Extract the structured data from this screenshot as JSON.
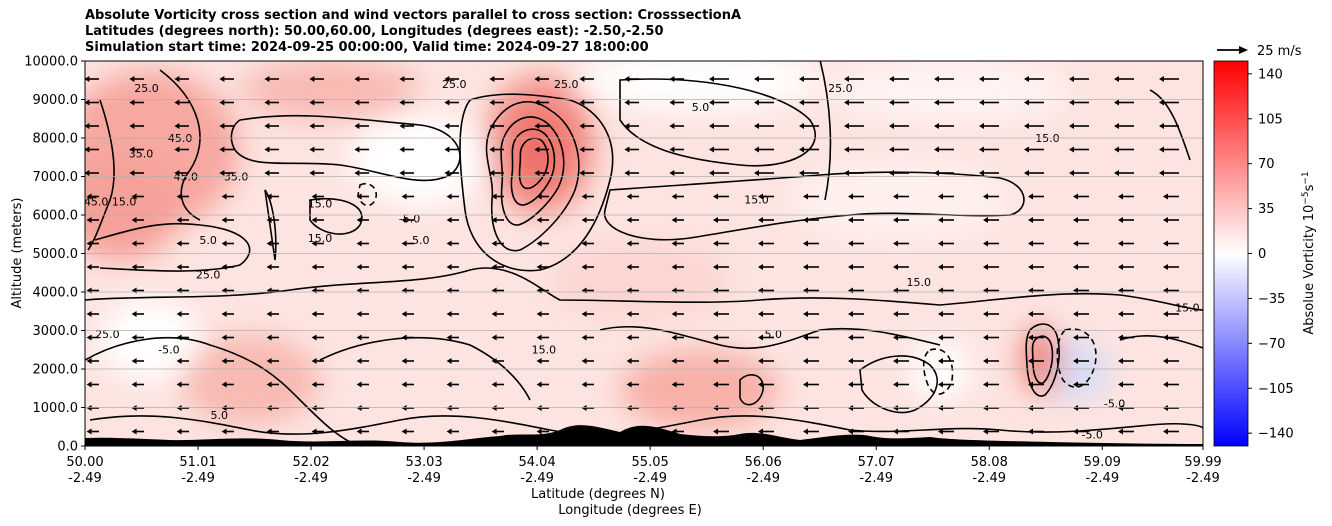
{
  "title_lines": [
    "Absolute Vorticity cross section and wind vectors parallel to cross section: CrosssectionA",
    "Latitudes (degrees north): 50.00,60.00, Longitudes (degrees east): -2.50,-2.50",
    "Simulation start time: 2024-09-25 00:00:00, Valid time: 2024-09-27 18:00:00"
  ],
  "chart_data": {
    "type": "heatmap",
    "ylabel": "Altitude (meters)",
    "xlabel_lines": [
      "Latitude (degrees N)",
      "Longitude (degrees E)"
    ],
    "ylim": [
      0,
      10000
    ],
    "xlim": [
      50.0,
      59.99
    ],
    "y_ticks": [
      "0.0",
      "1000.0",
      "2000.0",
      "3000.0",
      "4000.0",
      "5000.0",
      "6000.0",
      "7000.0",
      "8000.0",
      "9000.0",
      "10000.0"
    ],
    "y_tick_values": [
      0,
      1000,
      2000,
      3000,
      4000,
      5000,
      6000,
      7000,
      8000,
      9000,
      10000
    ],
    "x_ticks": [
      {
        "value": 50.0,
        "lat": "50.00",
        "lon": "-2.49"
      },
      {
        "value": 51.01,
        "lat": "51.01",
        "lon": "-2.49"
      },
      {
        "value": 52.02,
        "lat": "52.02",
        "lon": "-2.49"
      },
      {
        "value": 53.03,
        "lat": "53.03",
        "lon": "-2.49"
      },
      {
        "value": 54.04,
        "lat": "54.04",
        "lon": "-2.49"
      },
      {
        "value": 55.05,
        "lat": "55.05",
        "lon": "-2.49"
      },
      {
        "value": 56.06,
        "lat": "56.06",
        "lon": "-2.49"
      },
      {
        "value": 57.07,
        "lat": "57.07",
        "lon": "-2.49"
      },
      {
        "value": 58.08,
        "lat": "58.08",
        "lon": "-2.49"
      },
      {
        "value": 59.09,
        "lat": "59.09",
        "lon": "-2.49"
      },
      {
        "value": 59.99,
        "lat": "59.99",
        "lon": "-2.49"
      }
    ],
    "grid": "horizontal",
    "colorbar": {
      "label": "Absolue Vorticity 10",
      "label_exponent": "−5",
      "label_unit": "s",
      "label_unit_exponent": "−1",
      "range": [
        -150,
        150
      ],
      "ticks": [
        "140",
        "105",
        "70",
        "35",
        "0",
        "−35",
        "−70",
        "−105",
        "−140"
      ],
      "tick_values": [
        140,
        105,
        70,
        35,
        0,
        -35,
        -70,
        -105,
        -140
      ],
      "colormap": [
        "#0000ff",
        "#ffffff",
        "#ff0000"
      ]
    },
    "wind_key": {
      "label": "25 m/s"
    },
    "contour_labels": [
      {
        "text": "25.0",
        "x": 50.55,
        "y": 9200
      },
      {
        "text": "35.0",
        "x": 50.5,
        "y": 7500
      },
      {
        "text": "45.0",
        "x": 50.85,
        "y": 7900
      },
      {
        "text": "45.0",
        "x": 50.1,
        "y": 6250
      },
      {
        "text": "15.0",
        "x": 50.35,
        "y": 6250
      },
      {
        "text": "35.0",
        "x": 51.35,
        "y": 6900
      },
      {
        "text": "45.0",
        "x": 50.9,
        "y": 6900
      },
      {
        "text": "5.0",
        "x": 51.1,
        "y": 5250
      },
      {
        "text": "25.0",
        "x": 51.1,
        "y": 4350
      },
      {
        "text": "15.0",
        "x": 52.1,
        "y": 5300
      },
      {
        "text": "15.0",
        "x": 52.1,
        "y": 6200
      },
      {
        "text": "5.0",
        "x": 53.0,
        "y": 5250
      },
      {
        "text": "-5.0",
        "x": 52.9,
        "y": 5800
      },
      {
        "text": "25.0",
        "x": 53.3,
        "y": 9300
      },
      {
        "text": "25.0",
        "x": 54.3,
        "y": 9300
      },
      {
        "text": "5.0",
        "x": 55.5,
        "y": 8700
      },
      {
        "text": "25.0",
        "x": 56.75,
        "y": 9200
      },
      {
        "text": "15.0",
        "x": 58.6,
        "y": 7900
      },
      {
        "text": "15.0",
        "x": 56.0,
        "y": 6300
      },
      {
        "text": "15.0",
        "x": 57.45,
        "y": 4150
      },
      {
        "text": "5.0",
        "x": 56.15,
        "y": 2800
      },
      {
        "text": "-5.0",
        "x": 50.75,
        "y": 2400
      },
      {
        "text": "25.0",
        "x": 50.2,
        "y": 2800
      },
      {
        "text": "15.0",
        "x": 54.1,
        "y": 2400
      },
      {
        "text": "5.0",
        "x": 51.2,
        "y": 700
      },
      {
        "text": "-5.0",
        "x": 59.0,
        "y": 200
      },
      {
        "text": "-5.0",
        "x": 59.2,
        "y": 1000
      },
      {
        "text": "15.0",
        "x": 59.85,
        "y": 3500
      }
    ]
  }
}
